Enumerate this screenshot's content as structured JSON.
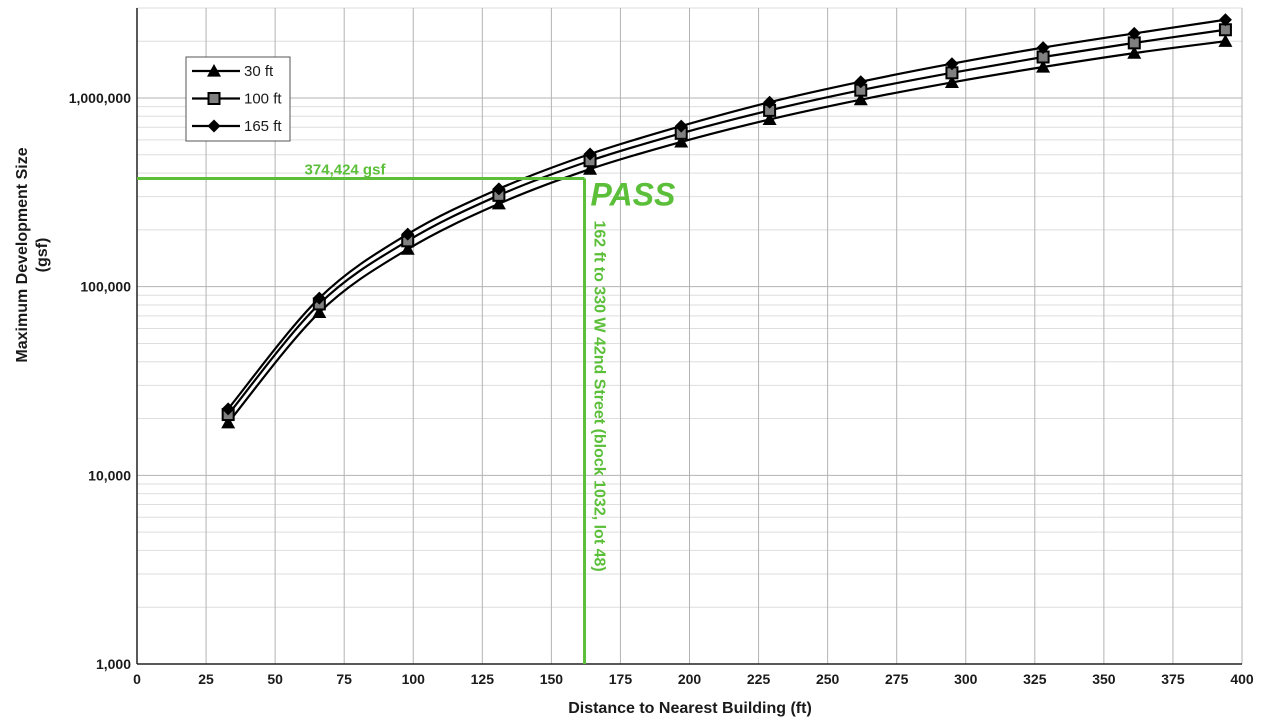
{
  "colors": {
    "series": "#000000",
    "annotation": "#5cbf3a",
    "grid_major": "#b3b3b3",
    "grid_minor": "#dedede",
    "marker_square_fill": "#808080"
  },
  "chart_data": {
    "type": "line",
    "title": "",
    "xlabel": "Distance to Nearest Building (ft)",
    "ylabel_lines": [
      "Maximum Development Size",
      "(gsf)"
    ],
    "xlim": [
      0,
      400
    ],
    "ylim": [
      1000,
      3000000
    ],
    "y_scale": "log",
    "grid": true,
    "legend_position": "top-left",
    "x_ticks": [
      0,
      25,
      50,
      75,
      100,
      125,
      150,
      175,
      200,
      225,
      250,
      275,
      300,
      325,
      350,
      375,
      400
    ],
    "x_tick_labels": [
      "0",
      "25",
      "50",
      "75",
      "100",
      "125",
      "150",
      "175",
      "200",
      "225",
      "250",
      "275",
      "300",
      "325",
      "350",
      "375",
      "400"
    ],
    "y_ticks": [
      1000,
      10000,
      100000,
      1000000
    ],
    "y_tick_labels": [
      "1,000",
      "10,000",
      "100,000",
      "1,000,000"
    ],
    "x": [
      33,
      66,
      98,
      131,
      164,
      197,
      229,
      262,
      295,
      328,
      361,
      394
    ],
    "series": [
      {
        "name": "30 ft",
        "marker": "triangle",
        "values": [
          19000,
          73000,
          158000,
          275000,
          420000,
          585000,
          770000,
          980000,
          1210000,
          1460000,
          1730000,
          2000000
        ]
      },
      {
        "name": "100 ft",
        "marker": "square",
        "values": [
          21000,
          81000,
          175000,
          305000,
          465000,
          650000,
          860000,
          1100000,
          1360000,
          1650000,
          1960000,
          2300000
        ]
      },
      {
        "name": "165 ft",
        "marker": "diamond",
        "values": [
          22500,
          87000,
          190000,
          330000,
          505000,
          710000,
          950000,
          1220000,
          1520000,
          1850000,
          2200000,
          2600000
        ]
      }
    ],
    "annotations": {
      "threshold_value": 374424,
      "threshold_label": "374,424 gsf",
      "distance_value": 162,
      "distance_label": "162 ft to 330 W 42nd Street (block 1032, lot 48)",
      "result_label": "PASS"
    }
  }
}
